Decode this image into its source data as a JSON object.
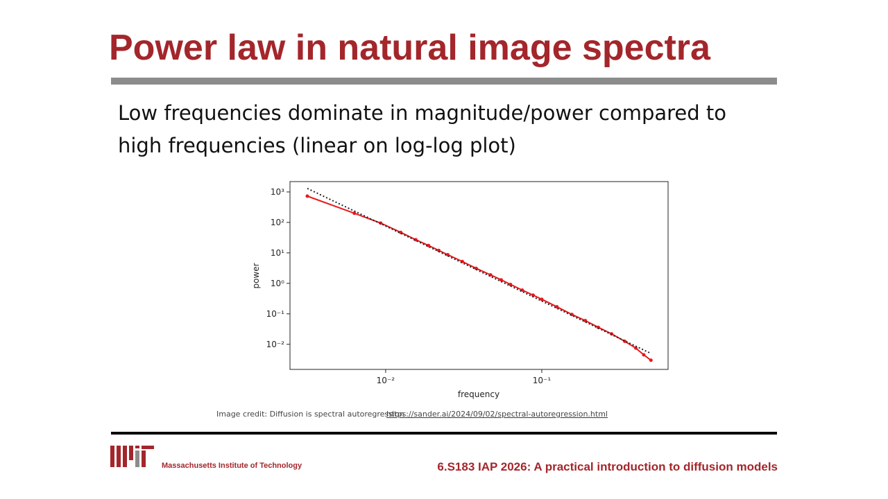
{
  "slide": {
    "title": "Power law in natural image spectra",
    "body": {
      "lines": [
        "Low frequencies dominate in magnitude/power compared to",
        "high frequencies (linear on log-log plot)"
      ]
    },
    "credit": {
      "text": "Image credit: Diffusion is spectral autoregression",
      "link": "https://sander.ai/2024/09/02/spectral-autoregression.html"
    },
    "footer": {
      "institute": "Massachusetts Institute of Technology",
      "course": "6.S183 IAP 2026: A practical introduction to diffusion models"
    }
  },
  "chart_data": {
    "type": "line",
    "xlabel": "frequency",
    "ylabel": "power",
    "xscale": "log",
    "yscale": "log",
    "xlim": [
      0.00244,
      0.644
    ],
    "ylim": [
      0.0015,
      2188
    ],
    "xticks": [
      {
        "value": 0.01,
        "label": "10⁻²"
      },
      {
        "value": 0.1,
        "label": "10⁻¹"
      }
    ],
    "yticks": [
      {
        "value": 1000,
        "label": "10³"
      },
      {
        "value": 100,
        "label": "10²"
      },
      {
        "value": 10,
        "label": "10¹"
      },
      {
        "value": 1,
        "label": "10⁰"
      },
      {
        "value": 0.1,
        "label": "10⁻¹"
      },
      {
        "value": 0.01,
        "label": "10⁻²"
      }
    ],
    "series": [
      {
        "color": "#e8191c",
        "style": "solid",
        "markers": true,
        "x": [
          0.00315,
          0.0063,
          0.0093,
          0.0125,
          0.0156,
          0.0188,
          0.0219,
          0.025,
          0.031,
          0.038,
          0.047,
          0.055,
          0.063,
          0.075,
          0.088,
          0.1,
          0.125,
          0.156,
          0.19,
          0.23,
          0.28,
          0.34,
          0.4,
          0.45,
          0.5
        ],
        "values": [
          730,
          200,
          95,
          47,
          27,
          17.5,
          12,
          8.7,
          5.2,
          3.1,
          1.9,
          1.3,
          0.92,
          0.6,
          0.41,
          0.3,
          0.17,
          0.095,
          0.06,
          0.036,
          0.022,
          0.0125,
          0.0075,
          0.0045,
          0.003
        ]
      },
      {
        "color": "#222222",
        "style": "dotted",
        "markers": false,
        "x": [
          0.00315,
          0.5
        ],
        "values": [
          1300,
          0.005
        ]
      }
    ]
  }
}
